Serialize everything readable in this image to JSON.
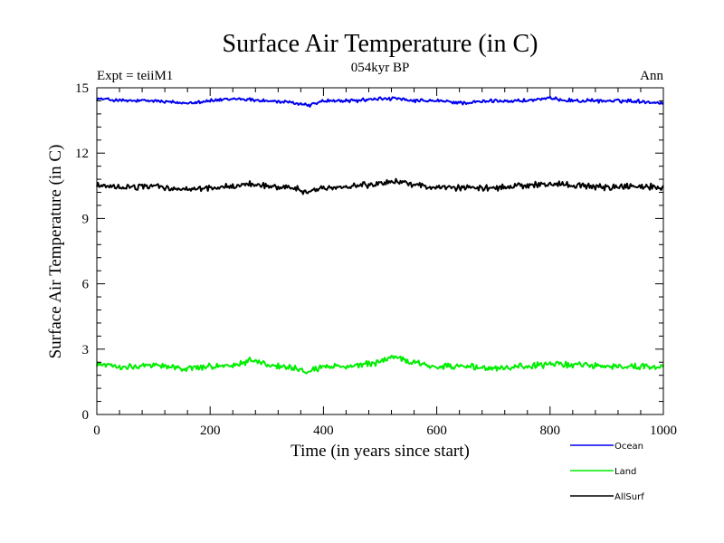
{
  "chart_data": {
    "type": "line",
    "title": "Surface Air Temperature (in C)",
    "subtitle": "054kyr BP",
    "annotation_left": "Expt = teiiM1",
    "annotation_right": "Ann",
    "xlabel": "Time (in years since start)",
    "ylabel": "Surface Air Temperature (in C)",
    "xlim": [
      0,
      1000
    ],
    "ylim": [
      0,
      15
    ],
    "xticks": [
      0,
      200,
      400,
      600,
      800,
      1000
    ],
    "yticks": [
      0,
      3,
      6,
      9,
      12,
      15
    ],
    "grid": false,
    "legend_position": "bottom-right",
    "series": [
      {
        "name": "Ocean",
        "color": "#0000ee",
        "x": [
          0,
          50,
          100,
          150,
          200,
          250,
          300,
          350,
          375,
          400,
          450,
          500,
          530,
          550,
          600,
          650,
          700,
          750,
          800,
          850,
          900,
          950,
          1000
        ],
        "values": [
          14.5,
          14.4,
          14.4,
          14.3,
          14.4,
          14.5,
          14.4,
          14.3,
          14.2,
          14.4,
          14.4,
          14.5,
          14.5,
          14.4,
          14.4,
          14.3,
          14.4,
          14.4,
          14.5,
          14.4,
          14.4,
          14.4,
          14.3
        ]
      },
      {
        "name": "Land",
        "color": "#00ee00",
        "x": [
          0,
          50,
          100,
          150,
          200,
          250,
          270,
          300,
          350,
          370,
          400,
          450,
          500,
          530,
          550,
          600,
          650,
          700,
          750,
          800,
          850,
          900,
          950,
          1000
        ],
        "values": [
          2.3,
          2.2,
          2.3,
          2.1,
          2.2,
          2.3,
          2.5,
          2.3,
          2.1,
          1.9,
          2.2,
          2.2,
          2.4,
          2.7,
          2.4,
          2.2,
          2.2,
          2.1,
          2.2,
          2.3,
          2.3,
          2.2,
          2.2,
          2.2
        ]
      },
      {
        "name": "AllSurf",
        "color": "#000000",
        "x": [
          0,
          50,
          100,
          150,
          200,
          250,
          270,
          300,
          350,
          370,
          400,
          450,
          500,
          530,
          550,
          600,
          650,
          700,
          750,
          800,
          850,
          900,
          950,
          1000
        ],
        "values": [
          10.5,
          10.4,
          10.5,
          10.3,
          10.4,
          10.5,
          10.6,
          10.5,
          10.4,
          10.2,
          10.4,
          10.5,
          10.6,
          10.7,
          10.6,
          10.4,
          10.4,
          10.4,
          10.5,
          10.6,
          10.5,
          10.4,
          10.5,
          10.4
        ]
      }
    ]
  }
}
